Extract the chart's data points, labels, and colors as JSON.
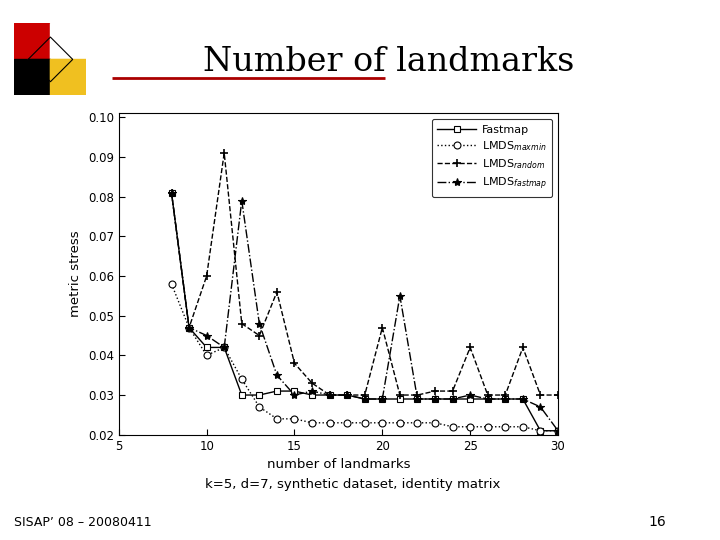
{
  "title": "Number of landmarks",
  "xlabel": "number of landmarks",
  "ylabel": "metric stress",
  "xlim": [
    5,
    30
  ],
  "ylim": [
    0.02,
    0.101
  ],
  "yticks": [
    0.02,
    0.03,
    0.04,
    0.05,
    0.06,
    0.07,
    0.08,
    0.09,
    0.1
  ],
  "xticks": [
    5,
    10,
    15,
    20,
    25,
    30
  ],
  "subtitle": "k=5, d=7, synthetic dataset, identity matrix",
  "footer": "SISAP’ 08 – 20080411",
  "footer_num": "16",
  "fastmap_x": [
    8,
    9,
    10,
    11,
    12,
    13,
    14,
    15,
    16,
    17,
    18,
    19,
    20,
    21,
    22,
    23,
    24,
    25,
    26,
    27,
    28,
    29,
    30
  ],
  "fastmap_y": [
    0.081,
    0.047,
    0.042,
    0.042,
    0.03,
    0.03,
    0.031,
    0.031,
    0.03,
    0.03,
    0.03,
    0.029,
    0.029,
    0.029,
    0.029,
    0.029,
    0.029,
    0.029,
    0.029,
    0.029,
    0.029,
    0.021,
    0.021
  ],
  "lmds_maxmin_x": [
    8,
    9,
    10,
    11,
    12,
    13,
    14,
    15,
    16,
    17,
    18,
    19,
    20,
    21,
    22,
    23,
    24,
    25,
    26,
    27,
    28,
    29,
    30
  ],
  "lmds_maxmin_y": [
    0.058,
    0.047,
    0.04,
    0.042,
    0.034,
    0.027,
    0.024,
    0.024,
    0.023,
    0.023,
    0.023,
    0.023,
    0.023,
    0.023,
    0.023,
    0.023,
    0.022,
    0.022,
    0.022,
    0.022,
    0.022,
    0.021,
    0.021
  ],
  "lmds_random_x": [
    8,
    9,
    10,
    11,
    12,
    13,
    14,
    15,
    16,
    17,
    18,
    19,
    20,
    21,
    22,
    23,
    24,
    25,
    26,
    27,
    28,
    29,
    30
  ],
  "lmds_random_y": [
    0.081,
    0.047,
    0.06,
    0.091,
    0.048,
    0.045,
    0.056,
    0.038,
    0.033,
    0.03,
    0.03,
    0.03,
    0.047,
    0.03,
    0.03,
    0.031,
    0.031,
    0.042,
    0.03,
    0.03,
    0.042,
    0.03,
    0.03
  ],
  "lmds_fastmap_x": [
    8,
    9,
    10,
    11,
    12,
    13,
    14,
    15,
    16,
    17,
    18,
    19,
    20,
    21,
    22,
    23,
    24,
    25,
    26,
    27,
    28,
    29,
    30
  ],
  "lmds_fastmap_y": [
    0.081,
    0.047,
    0.045,
    0.042,
    0.079,
    0.048,
    0.035,
    0.03,
    0.031,
    0.03,
    0.03,
    0.029,
    0.029,
    0.055,
    0.029,
    0.029,
    0.029,
    0.03,
    0.029,
    0.029,
    0.029,
    0.027,
    0.021
  ],
  "background": "#ffffff",
  "line_color": "#000000"
}
